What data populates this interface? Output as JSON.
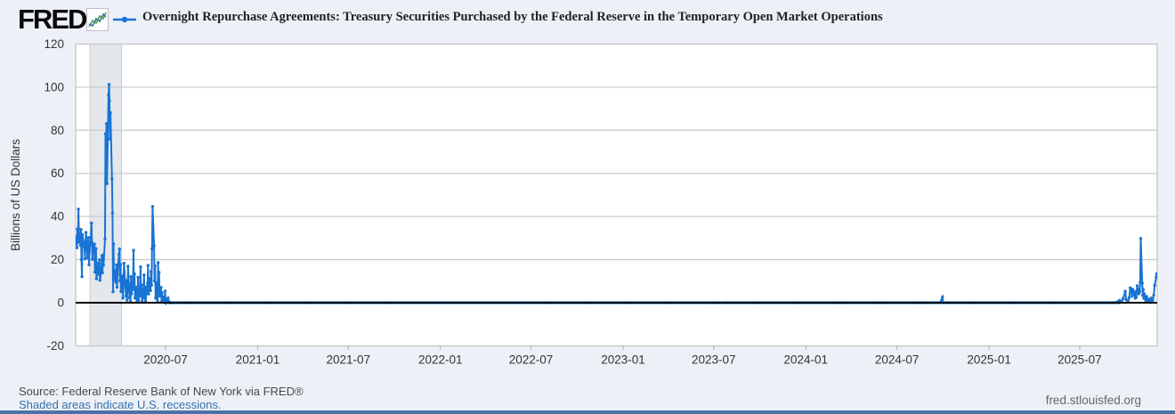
{
  "header": {
    "logo_text": "FRED",
    "logo_chart_icon": "fred-sparkline-icon",
    "series_title": "Overnight Repurchase Agreements: Treasury Securities Purchased by the Federal Reserve in the Temporary Open Market Operations"
  },
  "footer": {
    "source_line": "Source: Federal Reserve Bank of New York via FRED®",
    "recession_note": "Shaded areas indicate U.S. recessions.",
    "site_url": "fred.stlouisfed.org"
  },
  "colors": {
    "page_background": "#edf1f7",
    "plot_background": "#ffffff",
    "gridline": "#cccccc",
    "plot_border": "#c6c6c6",
    "recession_band": "#e4e7ec",
    "recession_band_edge": "#c8ccd2",
    "series_line": "#1973d2",
    "zero_line": "#000000",
    "tick_text": "#333333",
    "axis_title_text": "#333333",
    "bottom_bar": "#4a72a8",
    "link_text": "#3a6fad"
  },
  "chart_data": {
    "type": "line",
    "title": "Overnight Repurchase Agreements: Treasury Securities Purchased by the Federal Reserve in the Temporary Open Market Operations",
    "xlabel": "",
    "ylabel": "Billions of US Dollars",
    "ylim": [
      -20,
      120
    ],
    "yticks": [
      -20,
      0,
      20,
      40,
      60,
      80,
      100,
      120
    ],
    "xtick_labels": [
      "2020-07",
      "2021-01",
      "2021-07",
      "2022-01",
      "2022-07",
      "2023-01",
      "2023-07",
      "2024-01",
      "2024-07",
      "2025-01",
      "2025-07"
    ],
    "x_start": "2020-01-03",
    "x_end": "2025-12-03",
    "grid": "horizontal-only",
    "legend_position": "top",
    "zero_line": true,
    "recession_bands": [
      {
        "start": "2020-02-01",
        "end": "2020-04-04"
      }
    ],
    "points": [
      [
        "2020-01-02",
        27.0
      ],
      [
        "2020-01-03",
        30.8
      ],
      [
        "2020-01-06",
        25.5
      ],
      [
        "2020-01-07",
        34.2
      ],
      [
        "2020-01-08",
        28.0
      ],
      [
        "2020-01-09",
        43.4
      ],
      [
        "2020-01-10",
        32.0
      ],
      [
        "2020-01-13",
        26.5
      ],
      [
        "2020-01-14",
        34.0
      ],
      [
        "2020-01-15",
        20.0
      ],
      [
        "2020-01-16",
        12.1
      ],
      [
        "2020-01-17",
        31.6
      ],
      [
        "2020-01-21",
        25.8
      ],
      [
        "2020-01-22",
        20.3
      ],
      [
        "2020-01-23",
        28.2
      ],
      [
        "2020-01-24",
        32.6
      ],
      [
        "2020-01-27",
        20.8
      ],
      [
        "2020-01-28",
        25.6
      ],
      [
        "2020-01-29",
        30.2
      ],
      [
        "2020-01-30",
        17.6
      ],
      [
        "2020-01-31",
        23.8
      ],
      [
        "2020-02-03",
        30.3
      ],
      [
        "2020-02-04",
        36.9
      ],
      [
        "2020-02-05",
        27.8
      ],
      [
        "2020-02-06",
        20.1
      ],
      [
        "2020-02-07",
        25.9
      ],
      [
        "2020-02-10",
        27.2
      ],
      [
        "2020-02-11",
        14.2
      ],
      [
        "2020-02-12",
        21.4
      ],
      [
        "2020-02-13",
        25.1
      ],
      [
        "2020-02-14",
        11.1
      ],
      [
        "2020-02-18",
        18.4
      ],
      [
        "2020-02-19",
        13.2
      ],
      [
        "2020-02-20",
        19.9
      ],
      [
        "2020-02-21",
        10.4
      ],
      [
        "2020-02-24",
        15.2
      ],
      [
        "2020-02-25",
        21.8
      ],
      [
        "2020-02-26",
        13.9
      ],
      [
        "2020-02-27",
        22.1
      ],
      [
        "2020-02-28",
        17.4
      ],
      [
        "2020-03-02",
        29.6
      ],
      [
        "2020-03-03",
        78.4
      ],
      [
        "2020-03-04",
        61.0
      ],
      [
        "2020-03-05",
        83.1
      ],
      [
        "2020-03-06",
        55.2
      ],
      [
        "2020-03-09",
        96.4
      ],
      [
        "2020-03-10",
        101.2
      ],
      [
        "2020-03-11",
        93.6
      ],
      [
        "2020-03-12",
        75.9
      ],
      [
        "2020-03-13",
        88.1
      ],
      [
        "2020-03-16",
        57.4
      ],
      [
        "2020-03-17",
        41.6
      ],
      [
        "2020-03-18",
        5.1
      ],
      [
        "2020-03-19",
        27.3
      ],
      [
        "2020-03-20",
        10.6
      ],
      [
        "2020-03-23",
        14.9
      ],
      [
        "2020-03-24",
        9.4
      ],
      [
        "2020-03-25",
        17.6
      ],
      [
        "2020-03-26",
        7.2
      ],
      [
        "2020-03-27",
        13.1
      ],
      [
        "2020-03-30",
        22.4
      ],
      [
        "2020-03-31",
        24.9
      ],
      [
        "2020-04-01",
        10.1
      ],
      [
        "2020-04-02",
        17.7
      ],
      [
        "2020-04-03",
        5.2
      ],
      [
        "2020-04-06",
        12.4
      ],
      [
        "2020-04-07",
        2.1
      ],
      [
        "2020-04-08",
        8.1
      ],
      [
        "2020-04-09",
        18.3
      ],
      [
        "2020-04-13",
        3.1
      ],
      [
        "2020-04-14",
        10.2
      ],
      [
        "2020-04-15",
        1.2
      ],
      [
        "2020-04-16",
        6.1
      ],
      [
        "2020-04-17",
        16.9
      ],
      [
        "2020-04-20",
        2.4
      ],
      [
        "2020-04-21",
        8.6
      ],
      [
        "2020-04-22",
        0.6
      ],
      [
        "2020-04-23",
        12.1
      ],
      [
        "2020-04-24",
        4.1
      ],
      [
        "2020-04-27",
        9.0
      ],
      [
        "2020-04-28",
        24.3
      ],
      [
        "2020-04-29",
        6.2
      ],
      [
        "2020-04-30",
        13.4
      ],
      [
        "2020-05-01",
        2.1
      ],
      [
        "2020-05-04",
        7.1
      ],
      [
        "2020-05-05",
        0.6
      ],
      [
        "2020-05-06",
        4.6
      ],
      [
        "2020-05-07",
        11.8
      ],
      [
        "2020-05-08",
        1.1
      ],
      [
        "2020-05-11",
        5.4
      ],
      [
        "2020-05-12",
        16.6
      ],
      [
        "2020-05-13",
        3.1
      ],
      [
        "2020-05-14",
        8.2
      ],
      [
        "2020-05-15",
        0.6
      ],
      [
        "2020-05-18",
        6.1
      ],
      [
        "2020-05-19",
        12.9
      ],
      [
        "2020-05-20",
        2.1
      ],
      [
        "2020-05-21",
        7.4
      ],
      [
        "2020-05-22",
        0.6
      ],
      [
        "2020-05-26",
        9.1
      ],
      [
        "2020-05-27",
        17.3
      ],
      [
        "2020-05-28",
        4.1
      ],
      [
        "2020-05-29",
        11.1
      ],
      [
        "2020-06-01",
        5.6
      ],
      [
        "2020-06-02",
        14.4
      ],
      [
        "2020-06-03",
        8.1
      ],
      [
        "2020-06-04",
        25.1
      ],
      [
        "2020-06-05",
        44.6
      ],
      [
        "2020-06-08",
        26.4
      ],
      [
        "2020-06-09",
        10.1
      ],
      [
        "2020-06-10",
        17.1
      ],
      [
        "2020-06-11",
        2.1
      ],
      [
        "2020-06-12",
        9.2
      ],
      [
        "2020-06-15",
        0.6
      ],
      [
        "2020-06-16",
        18.6
      ],
      [
        "2020-06-17",
        8.1
      ],
      [
        "2020-06-18",
        14.1
      ],
      [
        "2020-06-19",
        3.1
      ],
      [
        "2020-06-22",
        7.1
      ],
      [
        "2020-06-23",
        0.4
      ],
      [
        "2020-06-24",
        4.6
      ],
      [
        "2020-06-25",
        1.1
      ],
      [
        "2020-06-26",
        2.6
      ],
      [
        "2020-06-29",
        0.1
      ],
      [
        "2020-06-30",
        5.4
      ],
      [
        "2020-07-01",
        1.6
      ],
      [
        "2020-07-02",
        0.0
      ],
      [
        "2020-07-06",
        2.1
      ],
      [
        "2020-07-07",
        0.6
      ],
      [
        "2020-07-08",
        0.1
      ],
      [
        "2020-07-09",
        0.0
      ],
      [
        "2020-07-10",
        0.0
      ],
      [
        "2024-09-30",
        2.6
      ],
      [
        "2025-09-15",
        0.5
      ],
      [
        "2025-09-17",
        0.0
      ],
      [
        "2025-09-19",
        1.1
      ],
      [
        "2025-09-23",
        0.4
      ],
      [
        "2025-09-26",
        1.9
      ],
      [
        "2025-09-30",
        5.3
      ],
      [
        "2025-10-02",
        1.4
      ],
      [
        "2025-10-06",
        0.5
      ],
      [
        "2025-10-08",
        2.4
      ],
      [
        "2025-10-10",
        6.9
      ],
      [
        "2025-10-14",
        3.1
      ],
      [
        "2025-10-15",
        6.2
      ],
      [
        "2025-10-16",
        4.4
      ],
      [
        "2025-10-17",
        5.1
      ],
      [
        "2025-10-20",
        2.1
      ],
      [
        "2025-10-21",
        4.9
      ],
      [
        "2025-10-22",
        2.6
      ],
      [
        "2025-10-23",
        5.4
      ],
      [
        "2025-10-24",
        7.9
      ],
      [
        "2025-10-27",
        4.1
      ],
      [
        "2025-10-28",
        6.4
      ],
      [
        "2025-10-29",
        5.1
      ],
      [
        "2025-10-30",
        9.4
      ],
      [
        "2025-10-31",
        29.8
      ],
      [
        "2025-11-03",
        9.1
      ],
      [
        "2025-11-04",
        3.4
      ],
      [
        "2025-11-05",
        6.1
      ],
      [
        "2025-11-06",
        2.1
      ],
      [
        "2025-11-07",
        4.1
      ],
      [
        "2025-11-10",
        1.1
      ],
      [
        "2025-11-12",
        2.9
      ],
      [
        "2025-11-14",
        0.6
      ],
      [
        "2025-11-17",
        1.6
      ],
      [
        "2025-11-19",
        0.4
      ],
      [
        "2025-11-21",
        2.1
      ],
      [
        "2025-11-24",
        1.1
      ],
      [
        "2025-11-26",
        3.4
      ],
      [
        "2025-11-28",
        8.1
      ],
      [
        "2025-12-01",
        11.9
      ],
      [
        "2025-12-02",
        13.4
      ]
    ],
    "flat_runs": [
      {
        "start": "2020-07-13",
        "end": "2024-09-27",
        "value": 0.0,
        "step_days": 5
      },
      {
        "start": "2024-10-01",
        "end": "2025-09-12",
        "value": 0.0,
        "step_days": 5
      }
    ]
  }
}
